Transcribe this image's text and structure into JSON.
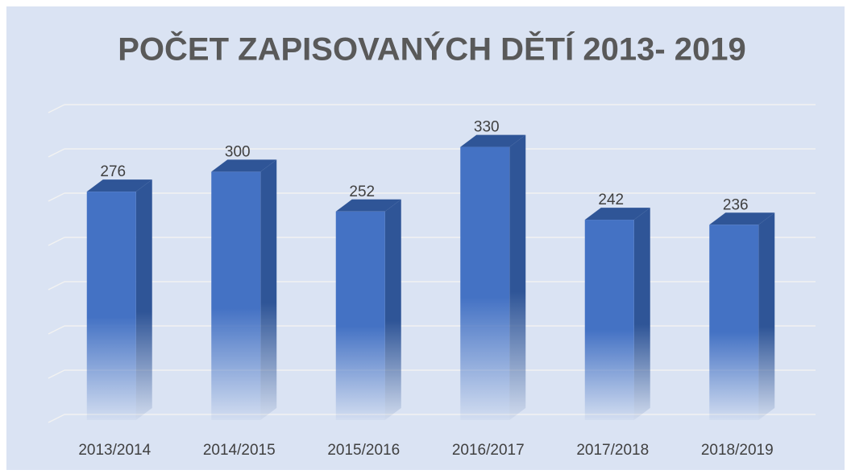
{
  "chart_data": {
    "type": "bar3d",
    "title": "POČET ZAPISOVANÝCH DĚTÍ 2013- 2019",
    "categories": [
      "2013/2014",
      "2014/2015",
      "2015/2016",
      "2016/2017",
      "2017/2018",
      "2018/2019"
    ],
    "values": [
      276,
      300,
      252,
      330,
      242,
      236
    ],
    "color": "#4472c4",
    "ylim": [
      0,
      350
    ],
    "yticks": [
      0,
      50,
      100,
      150,
      200,
      250,
      300,
      350
    ],
    "grid": true
  }
}
